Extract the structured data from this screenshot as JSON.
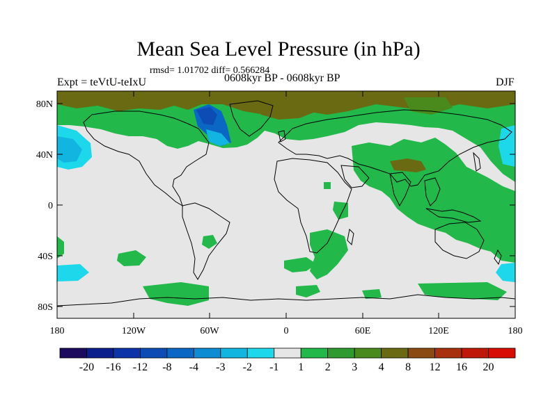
{
  "title": "Mean Sea Level Pressure (in hPa)",
  "stats": "rmsd= 1.01702 diff= 0.566284",
  "experiment": "Expt = teVtU-teIxU",
  "period": "0608kyr BP - 0608kyr BP",
  "season": "DJF",
  "axes": {
    "lat_ticks": [
      "80N",
      "40N",
      "0",
      "40S",
      "80S"
    ],
    "lon_ticks": [
      "180",
      "120W",
      "60W",
      "0",
      "60E",
      "120E",
      "180"
    ]
  },
  "colorbar": {
    "labels": [
      "-20",
      "-16",
      "-12",
      "-8",
      "-4",
      "-3",
      "-2",
      "-1",
      "1",
      "2",
      "3",
      "4",
      "8",
      "12",
      "16",
      "20"
    ],
    "colors": [
      "#1c0a5e",
      "#0a1e8c",
      "#0c34a8",
      "#0c4cb4",
      "#0a68c4",
      "#0c8cd2",
      "#12b4e0",
      "#1cd8ea",
      "#e6e6e6",
      "#22b84a",
      "#2f9a30",
      "#4a8a1c",
      "#6a6a12",
      "#8a4a12",
      "#a8300e",
      "#c01808",
      "#d80c04"
    ]
  },
  "colors": {
    "land_outline": "#000000",
    "ocean_near_zero": "#e6e6e6",
    "positive_green": "#22b84a",
    "negative_blue": "#0a68c4"
  }
}
